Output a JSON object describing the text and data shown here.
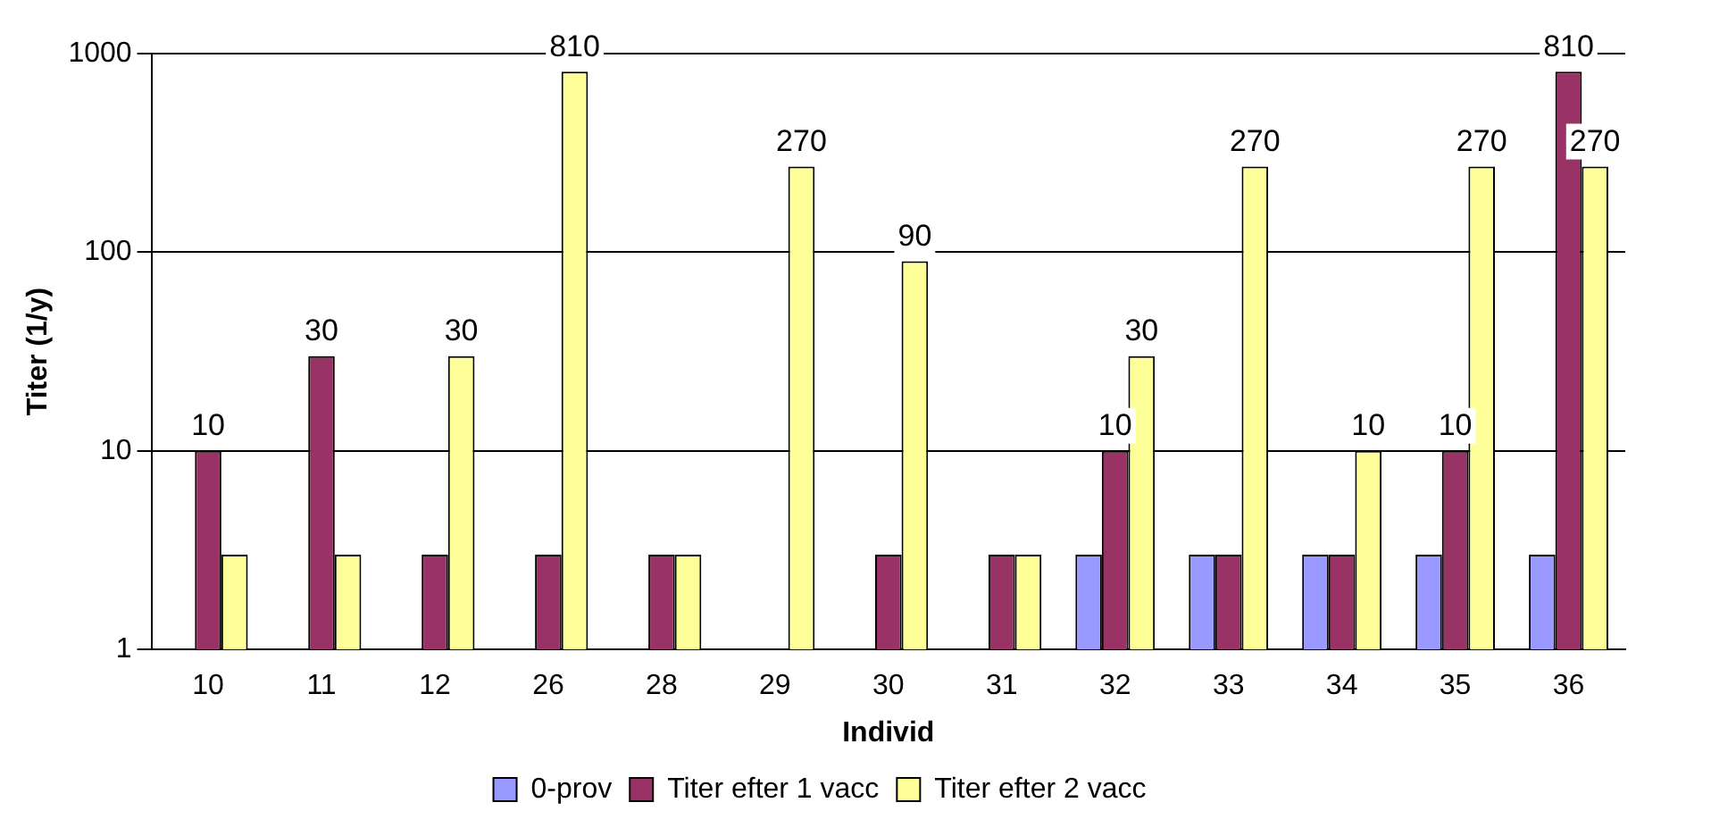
{
  "chart_data": {
    "type": "bar",
    "xlabel": "Individ",
    "ylabel": "Titer (1/y)",
    "categories": [
      "10",
      "11",
      "12",
      "26",
      "28",
      "29",
      "30",
      "31",
      "32",
      "33",
      "34",
      "35",
      "36"
    ],
    "series": [
      {
        "name": "0-prov",
        "color": "#9999ff",
        "values": [
          null,
          null,
          null,
          null,
          null,
          null,
          null,
          null,
          3,
          3,
          3,
          3,
          3
        ]
      },
      {
        "name": "Titer efter 1 vacc",
        "color": "#993366",
        "values": [
          10,
          30,
          3,
          3,
          3,
          null,
          3,
          3,
          10,
          3,
          3,
          10,
          810
        ],
        "value_labels": [
          "10",
          "30",
          null,
          null,
          null,
          null,
          null,
          null,
          "10",
          null,
          null,
          "10",
          "810"
        ]
      },
      {
        "name": "Titer efter 2 vacc",
        "color": "#ffff99",
        "values": [
          3,
          3,
          30,
          810,
          3,
          270,
          90,
          3,
          30,
          270,
          10,
          270,
          270
        ],
        "value_labels": [
          null,
          null,
          "30",
          "810",
          null,
          "270",
          "90",
          null,
          "30",
          "270",
          "10",
          "270",
          "270"
        ]
      }
    ],
    "log": "y",
    "ylim": [
      1,
      1000
    ],
    "yticks": [
      1,
      10,
      100,
      1000
    ],
    "grid": "y",
    "legend": "bottom"
  }
}
